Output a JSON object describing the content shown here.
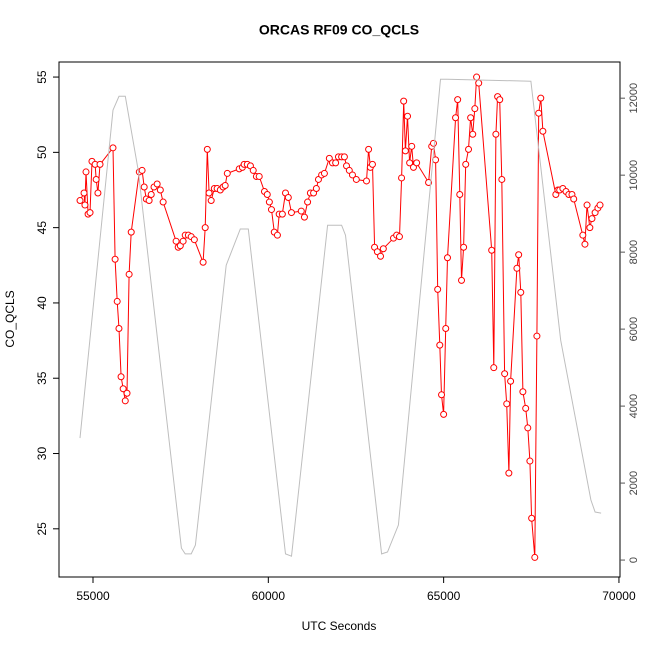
{
  "chart_data": {
    "type": "scatter",
    "title": "ORCAS RF09 CO_QCLS",
    "x_label": "UTC Seconds",
    "y_label": "CO_QCLS",
    "xlim": [
      54030,
      70030
    ],
    "xticks": [
      55000,
      60000,
      65000,
      70000
    ],
    "ylim": [
      21.8,
      56.0
    ],
    "yticks": [
      25,
      30,
      35,
      40,
      45,
      50,
      55
    ],
    "y2lim": [
      -440,
      12940
    ],
    "y2ticks": [
      0,
      2000,
      4000,
      6000,
      8000,
      10000,
      12000
    ],
    "series": [
      {
        "color": "#ff0000",
        "markers": true,
        "x": [
          54630,
          54744,
          54770,
          54800,
          54860,
          54915,
          54970,
          55060,
          55090,
          55140,
          55200,
          55570,
          55630,
          55690,
          55740,
          55800,
          55860,
          55920,
          55970,
          56030,
          56090,
          56320,
          56400,
          56460,
          56520,
          56600,
          56660,
          56740,
          56830,
          56920,
          57000,
          57370,
          57430,
          57490,
          57570,
          57630,
          57720,
          57800,
          57890,
          58140,
          58200,
          58260,
          58310,
          58370,
          58460,
          58540,
          58630,
          58710,
          58770,
          58830,
          59170,
          59260,
          59310,
          59400,
          59490,
          59570,
          59660,
          59740,
          59890,
          59970,
          60030,
          60090,
          60170,
          60260,
          60310,
          60400,
          60490,
          60570,
          60660,
          60940,
          61030,
          61120,
          61200,
          61290,
          61370,
          61430,
          61520,
          61600,
          61740,
          61830,
          61920,
          62000,
          62090,
          62170,
          62230,
          62310,
          62400,
          62510,
          62800,
          62860,
          62910,
          62970,
          63030,
          63110,
          63200,
          63280,
          63570,
          63660,
          63740,
          63800,
          63860,
          63910,
          63970,
          64030,
          64090,
          64140,
          64230,
          64570,
          64660,
          64710,
          64770,
          64830,
          64890,
          64940,
          65000,
          65060,
          65110,
          65340,
          65400,
          65460,
          65510,
          65570,
          65630,
          65710,
          65770,
          65830,
          65890,
          65940,
          66000,
          66370,
          66430,
          66490,
          66540,
          66600,
          66660,
          66740,
          66800,
          66860,
          66910,
          67090,
          67140,
          67200,
          67260,
          67340,
          67400,
          67460,
          67510,
          67600,
          67660,
          67710,
          67770,
          67830,
          68200,
          68260,
          68310,
          68400,
          68490,
          68570,
          68660,
          68710,
          68970,
          69030,
          69090,
          69170,
          69230,
          69320,
          69400,
          69460
        ],
        "values": [
          46.8,
          47.3,
          46.5,
          48.7,
          45.9,
          46.0,
          49.4,
          49.2,
          48.2,
          47.3,
          49.2,
          50.3,
          42.9,
          40.1,
          38.3,
          35.1,
          34.3,
          33.5,
          34.0,
          41.9,
          44.7,
          48.7,
          48.8,
          47.7,
          46.9,
          46.8,
          47.2,
          47.7,
          47.9,
          47.5,
          46.7,
          44.1,
          43.7,
          43.8,
          44.1,
          44.5,
          44.5,
          44.4,
          44.2,
          42.7,
          45.0,
          50.2,
          47.3,
          46.8,
          47.6,
          47.6,
          47.5,
          47.7,
          47.8,
          48.6,
          48.9,
          49.0,
          49.2,
          49.2,
          49.1,
          48.8,
          48.4,
          48.4,
          47.4,
          47.2,
          46.7,
          46.2,
          44.7,
          44.5,
          45.9,
          45.9,
          47.3,
          47.0,
          46.0,
          46.1,
          45.7,
          46.7,
          47.3,
          47.3,
          47.6,
          48.2,
          48.5,
          48.6,
          49.6,
          49.3,
          49.3,
          49.7,
          49.7,
          49.7,
          49.1,
          48.8,
          48.5,
          48.2,
          48.1,
          50.2,
          49.0,
          49.2,
          43.7,
          43.4,
          43.1,
          43.6,
          44.3,
          44.5,
          44.4,
          48.3,
          53.4,
          50.1,
          52.4,
          49.3,
          50.4,
          49.0,
          49.3,
          48.0,
          50.4,
          50.6,
          49.5,
          40.9,
          37.2,
          33.9,
          32.6,
          38.3,
          43.0,
          52.3,
          53.5,
          47.2,
          41.5,
          43.7,
          49.2,
          50.2,
          52.3,
          51.2,
          52.9,
          55.0,
          54.6,
          43.5,
          35.7,
          51.2,
          53.7,
          53.5,
          48.2,
          35.3,
          33.3,
          28.7,
          34.8,
          42.3,
          43.2,
          40.7,
          34.1,
          33.0,
          31.7,
          29.5,
          25.7,
          23.1,
          37.8,
          52.6,
          53.6,
          51.4,
          47.2,
          47.5,
          47.5,
          47.6,
          47.4,
          47.2,
          47.2,
          46.9,
          44.5,
          43.9,
          46.5,
          45.0,
          45.6,
          46.0,
          46.3,
          46.5
        ]
      },
      {
        "color": "#bebebe",
        "markers": false,
        "axis": "y2",
        "x": [
          54630,
          55570,
          55740,
          55920,
          56290,
          57520,
          57630,
          57800,
          57920,
          58800,
          59200,
          59430,
          60490,
          60660,
          61690,
          61800,
          62090,
          62200,
          63230,
          63400,
          63710,
          64910,
          65110,
          67490,
          68340,
          69200,
          69320,
          69490
        ],
        "values": [
          3170,
          11690,
          12050,
          12050,
          10130,
          310,
          160,
          160,
          390,
          7660,
          8600,
          8600,
          160,
          100,
          8700,
          8700,
          8700,
          8440,
          160,
          210,
          910,
          12490,
          12490,
          12440,
          5710,
          1560,
          1250,
          1220
        ]
      }
    ]
  }
}
